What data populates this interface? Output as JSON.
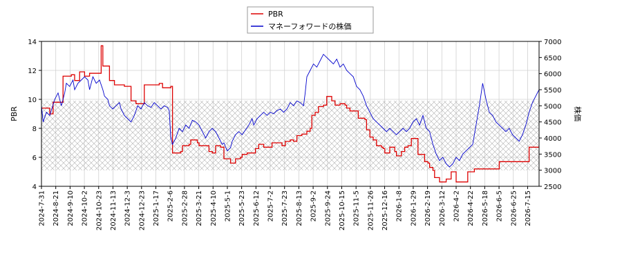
{
  "chart_data": {
    "type": "line",
    "legend_position": "top-center",
    "grid": true,
    "xlabel": "",
    "x_ticks": [
      "2024-7-31",
      "2024-8-21",
      "2024-9-10",
      "2024-10-2",
      "2024-10-23",
      "2024-11-13",
      "2024-12-3",
      "2024-12-23",
      "2025-1-17",
      "2025-2-6",
      "2025-2-28",
      "2025-3-21",
      "2025-4-10",
      "2025-5-1",
      "2025-5-23",
      "2025-6-12",
      "2025-7-2",
      "2025-7-23",
      "2025-8-13",
      "2025-9-2",
      "2025-9-24",
      "2025-10-15",
      "2025-11-5",
      "2025-11-26",
      "2025-12-16",
      "2026-1-8",
      "2026-1-29",
      "2026-2-19",
      "2026-3-12",
      "2026-4-2",
      "2026-4-22",
      "2026-5-18",
      "2026-6-5",
      "2026-6-25",
      "2026-7-15"
    ],
    "y_left": {
      "label": "PBR",
      "lim": [
        4,
        14
      ],
      "ticks": [
        4,
        6,
        8,
        10,
        12,
        14
      ]
    },
    "y_right": {
      "label": "株価",
      "lim": [
        2500,
        7000
      ],
      "ticks": [
        2500,
        3000,
        3500,
        4000,
        4500,
        5000,
        5500,
        6000,
        6500,
        7000
      ]
    },
    "hatch_band_left_units": [
      5.1,
      9.9
    ],
    "series": [
      {
        "name": "PBR",
        "color": "#dd0000",
        "axis": "left",
        "points": [
          [
            0,
            9.4
          ],
          [
            5,
            9.0
          ],
          [
            7,
            9.8
          ],
          [
            12,
            9.8
          ],
          [
            13,
            11.6
          ],
          [
            18,
            11.7
          ],
          [
            20,
            11.3
          ],
          [
            23,
            11.9
          ],
          [
            26,
            11.6
          ],
          [
            29,
            11.8
          ],
          [
            33,
            11.8
          ],
          [
            36,
            13.7
          ],
          [
            37,
            12.3
          ],
          [
            40,
            12.3
          ],
          [
            41,
            11.3
          ],
          [
            44,
            11.0
          ],
          [
            50,
            10.9
          ],
          [
            54,
            9.9
          ],
          [
            57,
            9.7
          ],
          [
            61,
            9.7
          ],
          [
            62,
            11.0
          ],
          [
            66,
            11.0
          ],
          [
            71,
            11.1
          ],
          [
            73,
            10.8
          ],
          [
            76,
            10.8
          ],
          [
            78,
            10.9
          ],
          [
            79,
            6.3
          ],
          [
            84,
            6.4
          ],
          [
            85,
            6.8
          ],
          [
            89,
            6.9
          ],
          [
            90,
            7.2
          ],
          [
            94,
            7.0
          ],
          [
            95,
            6.8
          ],
          [
            100,
            6.8
          ],
          [
            101,
            6.4
          ],
          [
            103,
            6.3
          ],
          [
            105,
            6.8
          ],
          [
            108,
            6.7
          ],
          [
            110,
            5.9
          ],
          [
            113,
            5.9
          ],
          [
            114,
            5.6
          ],
          [
            116,
            5.6
          ],
          [
            117,
            5.9
          ],
          [
            120,
            6.0
          ],
          [
            121,
            6.2
          ],
          [
            124,
            6.3
          ],
          [
            127,
            6.3
          ],
          [
            129,
            6.6
          ],
          [
            131,
            6.9
          ],
          [
            134,
            6.7
          ],
          [
            136,
            6.7
          ],
          [
            139,
            7.0
          ],
          [
            142,
            7.0
          ],
          [
            145,
            6.8
          ],
          [
            147,
            7.1
          ],
          [
            150,
            7.2
          ],
          [
            152,
            7.1
          ],
          [
            154,
            7.5
          ],
          [
            157,
            7.6
          ],
          [
            160,
            7.8
          ],
          [
            162,
            8.0
          ],
          [
            163,
            8.9
          ],
          [
            165,
            9.1
          ],
          [
            167,
            9.5
          ],
          [
            170,
            9.6
          ],
          [
            172,
            10.2
          ],
          [
            174,
            10.2
          ],
          [
            175,
            9.9
          ],
          [
            177,
            9.6
          ],
          [
            180,
            9.7
          ],
          [
            183,
            9.6
          ],
          [
            184,
            9.4
          ],
          [
            186,
            9.2
          ],
          [
            190,
            9.2
          ],
          [
            191,
            8.7
          ],
          [
            195,
            8.6
          ],
          [
            196,
            7.9
          ],
          [
            198,
            7.4
          ],
          [
            200,
            7.2
          ],
          [
            202,
            6.8
          ],
          [
            205,
            6.7
          ],
          [
            206,
            6.6
          ],
          [
            207,
            6.3
          ],
          [
            209,
            6.3
          ],
          [
            210,
            6.7
          ],
          [
            213,
            6.4
          ],
          [
            214,
            6.1
          ],
          [
            216,
            6.1
          ],
          [
            217,
            6.4
          ],
          [
            219,
            6.7
          ],
          [
            221,
            6.8
          ],
          [
            223,
            7.3
          ],
          [
            226,
            7.3
          ],
          [
            227,
            6.2
          ],
          [
            230,
            6.2
          ],
          [
            231,
            5.7
          ],
          [
            233,
            5.6
          ],
          [
            234,
            5.3
          ],
          [
            236,
            5.1
          ],
          [
            237,
            4.6
          ],
          [
            240,
            4.3
          ],
          [
            243,
            4.3
          ],
          [
            244,
            4.5
          ],
          [
            246,
            4.5
          ],
          [
            247,
            5.0
          ],
          [
            249,
            5.0
          ],
          [
            250,
            4.3
          ],
          [
            256,
            4.3
          ],
          [
            257,
            5.0
          ],
          [
            259,
            5.0
          ],
          [
            261,
            5.2
          ],
          [
            275,
            5.2
          ],
          [
            276,
            5.7
          ],
          [
            293,
            5.7
          ],
          [
            294,
            6.7
          ],
          [
            300,
            6.7
          ]
        ]
      },
      {
        "name": "マネーフォワードの株価",
        "color": "#0000cc",
        "axis": "right",
        "points": [
          [
            0,
            5000
          ],
          [
            1,
            4500
          ],
          [
            3,
            4800
          ],
          [
            5,
            4700
          ],
          [
            8,
            5200
          ],
          [
            10,
            5400
          ],
          [
            12,
            5000
          ],
          [
            14,
            5400
          ],
          [
            15,
            5700
          ],
          [
            17,
            5600
          ],
          [
            19,
            5800
          ],
          [
            20,
            5500
          ],
          [
            22,
            5700
          ],
          [
            24,
            5800
          ],
          [
            26,
            5900
          ],
          [
            28,
            5800
          ],
          [
            29,
            5500
          ],
          [
            31,
            5900
          ],
          [
            33,
            5700
          ],
          [
            35,
            5800
          ],
          [
            37,
            5500
          ],
          [
            38,
            5300
          ],
          [
            40,
            5200
          ],
          [
            41,
            5000
          ],
          [
            43,
            4900
          ],
          [
            45,
            5000
          ],
          [
            47,
            5100
          ],
          [
            48,
            4900
          ],
          [
            50,
            4700
          ],
          [
            52,
            4600
          ],
          [
            54,
            4500
          ],
          [
            56,
            4700
          ],
          [
            58,
            5000
          ],
          [
            60,
            4900
          ],
          [
            62,
            5100
          ],
          [
            64,
            5000
          ],
          [
            66,
            4950
          ],
          [
            68,
            5100
          ],
          [
            70,
            5000
          ],
          [
            72,
            4900
          ],
          [
            74,
            5000
          ],
          [
            76,
            4950
          ],
          [
            77,
            4850
          ],
          [
            78,
            4000
          ],
          [
            79,
            3800
          ],
          [
            81,
            4000
          ],
          [
            83,
            4300
          ],
          [
            85,
            4200
          ],
          [
            87,
            4400
          ],
          [
            89,
            4300
          ],
          [
            91,
            4550
          ],
          [
            93,
            4500
          ],
          [
            95,
            4400
          ],
          [
            97,
            4200
          ],
          [
            99,
            4000
          ],
          [
            101,
            4200
          ],
          [
            103,
            4300
          ],
          [
            105,
            4200
          ],
          [
            107,
            4000
          ],
          [
            109,
            3800
          ],
          [
            110,
            3850
          ],
          [
            112,
            3600
          ],
          [
            114,
            3700
          ],
          [
            115,
            3900
          ],
          [
            117,
            4100
          ],
          [
            119,
            4200
          ],
          [
            121,
            4100
          ],
          [
            123,
            4250
          ],
          [
            125,
            4400
          ],
          [
            127,
            4600
          ],
          [
            128,
            4400
          ],
          [
            130,
            4600
          ],
          [
            132,
            4700
          ],
          [
            134,
            4800
          ],
          [
            136,
            4700
          ],
          [
            138,
            4800
          ],
          [
            140,
            4750
          ],
          [
            142,
            4850
          ],
          [
            144,
            4900
          ],
          [
            146,
            4800
          ],
          [
            148,
            4900
          ],
          [
            150,
            5100
          ],
          [
            152,
            5000
          ],
          [
            154,
            5150
          ],
          [
            156,
            5100
          ],
          [
            158,
            5000
          ],
          [
            159,
            5400
          ],
          [
            160,
            5900
          ],
          [
            162,
            6100
          ],
          [
            164,
            6300
          ],
          [
            166,
            6200
          ],
          [
            168,
            6400
          ],
          [
            170,
            6600
          ],
          [
            172,
            6500
          ],
          [
            174,
            6400
          ],
          [
            176,
            6300
          ],
          [
            178,
            6450
          ],
          [
            180,
            6200
          ],
          [
            182,
            6300
          ],
          [
            184,
            6100
          ],
          [
            186,
            6000
          ],
          [
            188,
            5900
          ],
          [
            190,
            5600
          ],
          [
            192,
            5500
          ],
          [
            194,
            5300
          ],
          [
            196,
            5000
          ],
          [
            198,
            4800
          ],
          [
            200,
            4600
          ],
          [
            202,
            4500
          ],
          [
            204,
            4400
          ],
          [
            206,
            4300
          ],
          [
            208,
            4200
          ],
          [
            210,
            4300
          ],
          [
            212,
            4200
          ],
          [
            214,
            4100
          ],
          [
            216,
            4200
          ],
          [
            218,
            4300
          ],
          [
            220,
            4200
          ],
          [
            222,
            4300
          ],
          [
            224,
            4500
          ],
          [
            226,
            4600
          ],
          [
            228,
            4400
          ],
          [
            230,
            4700
          ],
          [
            232,
            4300
          ],
          [
            234,
            4200
          ],
          [
            236,
            3800
          ],
          [
            238,
            3500
          ],
          [
            240,
            3300
          ],
          [
            242,
            3400
          ],
          [
            244,
            3200
          ],
          [
            246,
            3100
          ],
          [
            248,
            3200
          ],
          [
            250,
            3400
          ],
          [
            252,
            3300
          ],
          [
            254,
            3500
          ],
          [
            256,
            3600
          ],
          [
            258,
            3700
          ],
          [
            260,
            3800
          ],
          [
            262,
            4400
          ],
          [
            264,
            5000
          ],
          [
            266,
            5700
          ],
          [
            268,
            5200
          ],
          [
            270,
            4800
          ],
          [
            272,
            4700
          ],
          [
            274,
            4500
          ],
          [
            276,
            4400
          ],
          [
            278,
            4300
          ],
          [
            280,
            4200
          ],
          [
            282,
            4300
          ],
          [
            284,
            4100
          ],
          [
            286,
            4000
          ],
          [
            288,
            3900
          ],
          [
            290,
            4100
          ],
          [
            292,
            4400
          ],
          [
            294,
            4800
          ],
          [
            296,
            5100
          ],
          [
            298,
            5300
          ],
          [
            300,
            5500
          ]
        ]
      }
    ]
  }
}
